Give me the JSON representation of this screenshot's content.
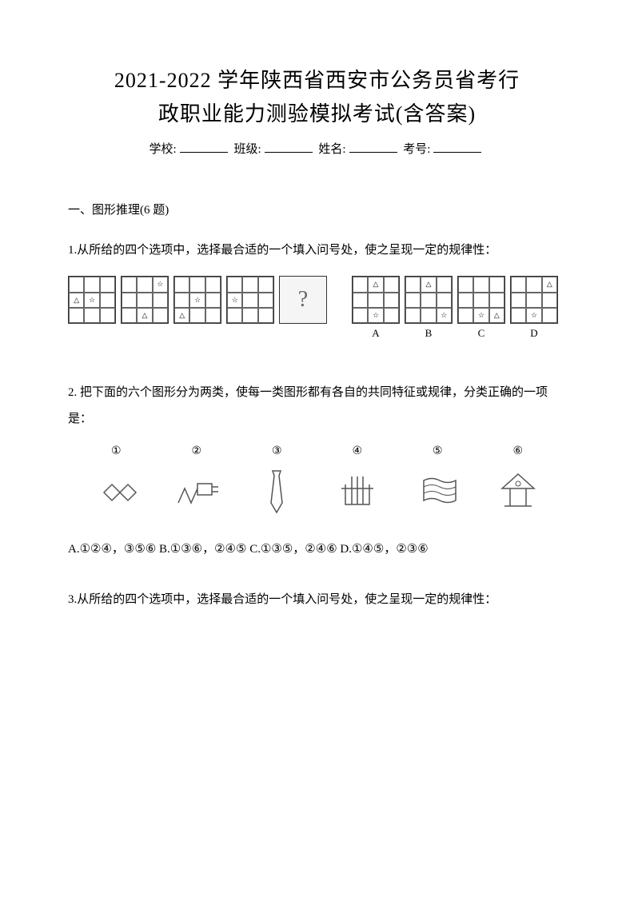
{
  "title_line1": "2021-2022 学年陕西省西安市公务员省考行",
  "title_line2": "政职业能力测验模拟考试(含答案)",
  "info": {
    "school_label": "学校:",
    "class_label": "班级:",
    "name_label": "姓名:",
    "id_label": "考号:"
  },
  "section1_header": "一、图形推理(6 题)",
  "q1": {
    "text": "1.从所给的四个选项中，选择最合适的一个填入问号处，使之呈现一定的规律性：",
    "sequence_grids": [
      {
        "cells": [
          "",
          "",
          "",
          "△",
          "☆",
          "",
          "",
          "",
          ""
        ]
      },
      {
        "cells": [
          "",
          "",
          "☆",
          "",
          "",
          "",
          "",
          "△",
          ""
        ]
      },
      {
        "cells": [
          "",
          "",
          "",
          "",
          "☆",
          "",
          "△",
          "",
          ""
        ]
      },
      {
        "cells": [
          "",
          "",
          "",
          "☆",
          "",
          "",
          "",
          "",
          ""
        ]
      }
    ],
    "question_mark": "?",
    "options": [
      {
        "label": "A",
        "cells": [
          "",
          "△",
          "",
          "",
          "",
          "",
          "",
          "☆",
          ""
        ]
      },
      {
        "label": "B",
        "cells": [
          "",
          "△",
          "",
          "",
          "",
          "",
          "",
          "",
          "☆"
        ]
      },
      {
        "label": "C",
        "cells": [
          "",
          "",
          "",
          "",
          "",
          "",
          "",
          "☆",
          "△"
        ]
      },
      {
        "label": "D",
        "cells": [
          "",
          "",
          "△",
          "",
          "",
          "",
          "",
          "☆",
          ""
        ]
      }
    ]
  },
  "q2": {
    "text": "2. 把下面的六个图形分为两类，使每一类图形都有各自的共同特征或规律，分类正确的一项是：",
    "numbers": [
      "①",
      "②",
      "③",
      "④",
      "⑤",
      "⑥"
    ],
    "options_text": "A.①②④，③⑤⑥  B.①③⑥，②④⑤  C.①③⑤，②④⑥  D.①④⑤，②③⑥"
  },
  "q3": {
    "text": "3.从所给的四个选项中，选择最合适的一个填入问号处，使之呈现一定的规律性："
  },
  "colors": {
    "text": "#000000",
    "border": "#333333",
    "cell_border": "#666666",
    "bg": "#ffffff",
    "qbox_bg": "#f5f5f5"
  }
}
